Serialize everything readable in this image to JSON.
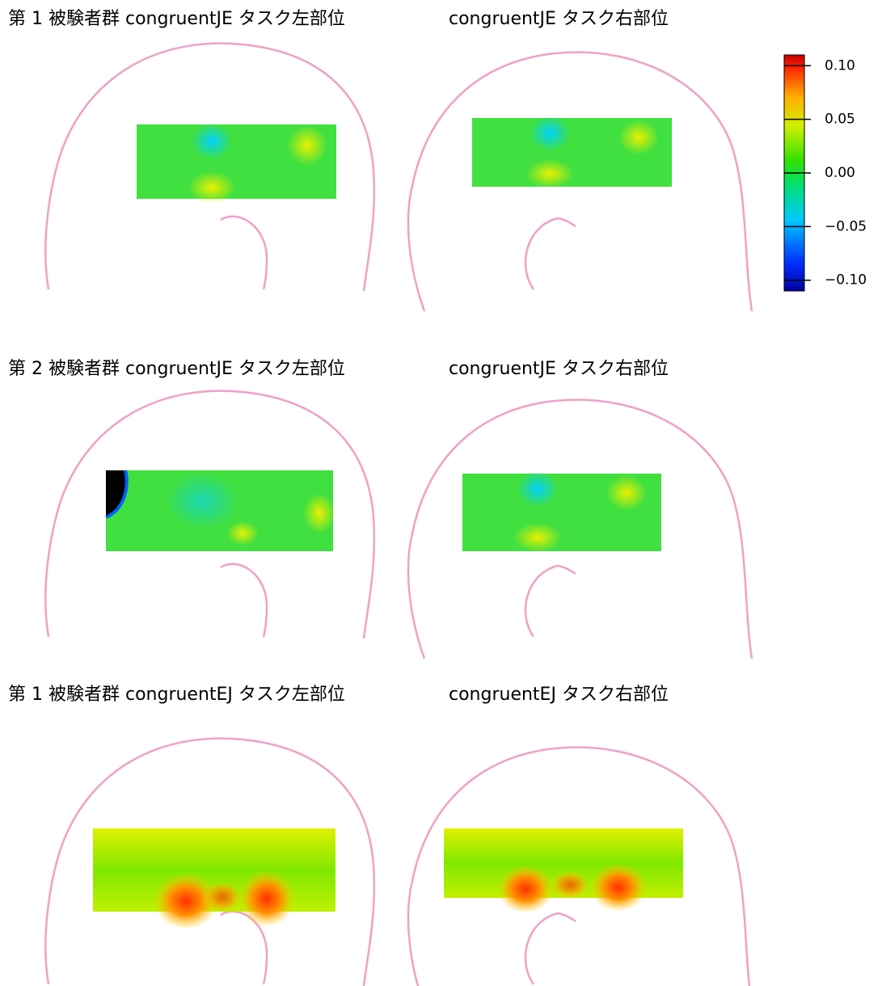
{
  "rows": [
    {
      "left_title": "第 1 被験者群 congruentJE タスク左部位",
      "right_title": "congruentJE タスク右部位"
    },
    {
      "left_title": "第 2 被験者群 congruentJE タスク左部位",
      "right_title": "congruentJE タスク右部位"
    },
    {
      "left_title": "第 1 被験者群 congruentEJ タスク左部位",
      "right_title": "congruentEJ タスク右部位"
    }
  ],
  "colorbar": {
    "lim": [
      -0.11,
      0.11
    ],
    "ticks": [
      {
        "value": 0.1,
        "label": "0.10"
      },
      {
        "value": 0.05,
        "label": "0.05"
      },
      {
        "value": 0,
        "label": "0.00"
      },
      {
        "value": -0.05,
        "label": "−0.05"
      },
      {
        "value": -0.1,
        "label": "−0.10"
      }
    ]
  }
}
